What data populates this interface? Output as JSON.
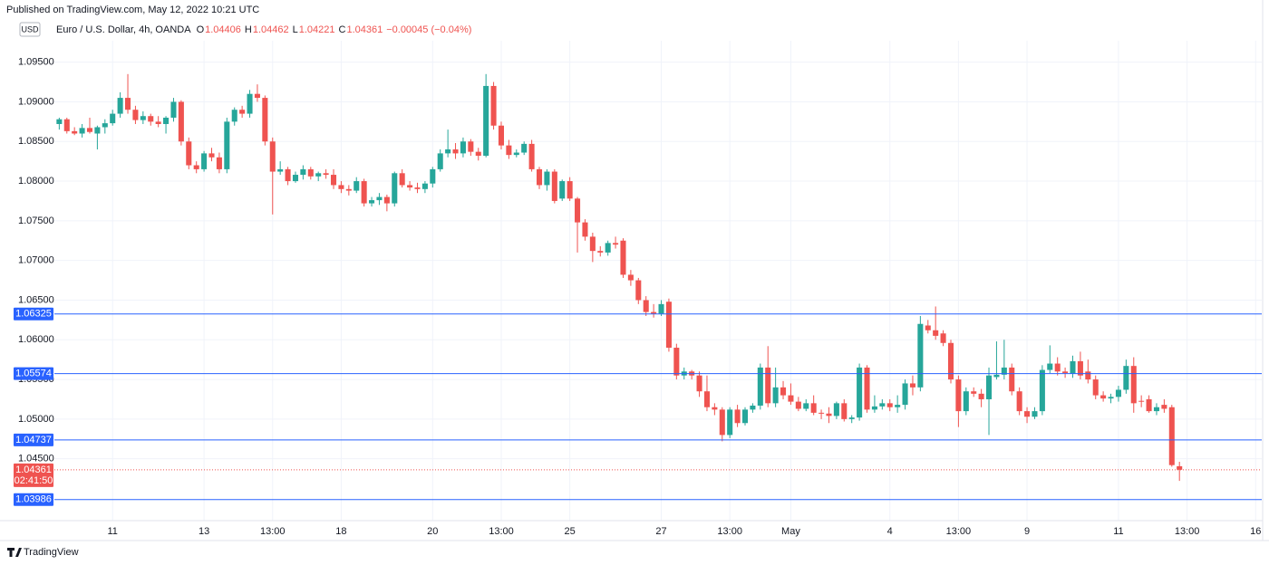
{
  "header": {
    "published": "Published on TradingView.com, May 12, 2022 10:21 UTC",
    "currency": "USD",
    "symbol": "Euro / U.S. Dollar, 4h, OANDA",
    "open_label": "O",
    "open": 1.04406,
    "high_label": "H",
    "high": 1.04462,
    "low_label": "L",
    "low": 1.04221,
    "close_label": "C",
    "close": 1.04361,
    "change": "−0.00045 (−0.04%)"
  },
  "footer": {
    "brand": "TradingView"
  },
  "chart_data": {
    "type": "candlestick",
    "up_color": "#26a69a",
    "down_color": "#ef5350",
    "level_color": "#2962ff",
    "grid": true,
    "ylim": [
      1.0372,
      1.0977
    ],
    "xlim": [
      -0.4,
      157.8
    ],
    "yticks": [
      {
        "value": 1.045,
        "label": "1.04500"
      },
      {
        "value": 1.05,
        "label": "1.05000"
      },
      {
        "value": 1.055,
        "label": "1.05500"
      },
      {
        "value": 1.06,
        "label": "1.06000"
      },
      {
        "value": 1.065,
        "label": "1.06500"
      },
      {
        "value": 1.07,
        "label": "1.07000"
      },
      {
        "value": 1.075,
        "label": "1.07500"
      },
      {
        "value": 1.08,
        "label": "1.08000"
      },
      {
        "value": 1.085,
        "label": "1.08500"
      },
      {
        "value": 1.09,
        "label": "1.09000"
      },
      {
        "value": 1.095,
        "label": "1.09500"
      }
    ],
    "xticks": [
      {
        "value": 7,
        "label": "11"
      },
      {
        "value": 19,
        "label": "13"
      },
      {
        "value": 28,
        "label": "13:00"
      },
      {
        "value": 37,
        "label": "18"
      },
      {
        "value": 49,
        "label": "20"
      },
      {
        "value": 58,
        "label": "13:00"
      },
      {
        "value": 67,
        "label": "25"
      },
      {
        "value": 79,
        "label": "27"
      },
      {
        "value": 88,
        "label": "13:00"
      },
      {
        "value": 96,
        "label": "May"
      },
      {
        "value": 109,
        "label": "4"
      },
      {
        "value": 118,
        "label": "13:00"
      },
      {
        "value": 127,
        "label": "9"
      },
      {
        "value": 139,
        "label": "11"
      },
      {
        "value": 148,
        "label": "13:00"
      },
      {
        "value": 157,
        "label": "16"
      }
    ],
    "levels": [
      1.06325,
      1.05574,
      1.04737,
      1.03986
    ],
    "countdown": "02:41:50",
    "ohlc": [
      [
        1.0872,
        1.088,
        1.0865,
        1.0878
      ],
      [
        1.0878,
        1.088,
        1.086,
        1.0863
      ],
      [
        1.0863,
        1.0868,
        1.0858,
        1.086
      ],
      [
        1.086,
        1.0872,
        1.0855,
        1.0867
      ],
      [
        1.0867,
        1.088,
        1.086,
        1.0862
      ],
      [
        1.086,
        1.087,
        1.084,
        1.0868
      ],
      [
        1.0868,
        1.0878,
        1.086,
        1.0873
      ],
      [
        1.0873,
        1.089,
        1.087,
        1.0885
      ],
      [
        1.0885,
        1.0912,
        1.088,
        1.0905
      ],
      [
        1.0905,
        1.0935,
        1.0885,
        1.089
      ],
      [
        1.089,
        1.0895,
        1.0872,
        1.0877
      ],
      [
        1.0877,
        1.0888,
        1.0872,
        1.0882
      ],
      [
        1.0882,
        1.0885,
        1.087,
        1.0875
      ],
      [
        1.0875,
        1.0882,
        1.0868,
        1.0872
      ],
      [
        1.0872,
        1.0882,
        1.086,
        1.088
      ],
      [
        1.088,
        1.0905,
        1.0875,
        1.09
      ],
      [
        1.09,
        1.0902,
        1.0845,
        1.085
      ],
      [
        1.085,
        1.0855,
        1.0815,
        1.082
      ],
      [
        1.082,
        1.0825,
        1.081,
        1.0815
      ],
      [
        1.0815,
        1.0838,
        1.0812,
        1.0835
      ],
      [
        1.0835,
        1.0842,
        1.0825,
        1.083
      ],
      [
        1.083,
        1.0836,
        1.081,
        1.0815
      ],
      [
        1.0815,
        1.088,
        1.081,
        1.0875
      ],
      [
        1.0875,
        1.0893,
        1.087,
        1.089
      ],
      [
        1.089,
        1.0895,
        1.088,
        1.0885
      ],
      [
        1.0885,
        1.0915,
        1.088,
        1.091
      ],
      [
        1.091,
        1.0922,
        1.09,
        1.0905
      ],
      [
        1.0905,
        1.0908,
        1.0845,
        1.085
      ],
      [
        1.085,
        1.0855,
        1.0758,
        1.0812
      ],
      [
        1.0812,
        1.0825,
        1.0808,
        1.0815
      ],
      [
        1.0815,
        1.0818,
        1.0795,
        1.08
      ],
      [
        1.08,
        1.0812,
        1.0798,
        1.0808
      ],
      [
        1.0808,
        1.082,
        1.0802,
        1.0815
      ],
      [
        1.0815,
        1.0818,
        1.0802,
        1.0806
      ],
      [
        1.0806,
        1.0812,
        1.08,
        1.081
      ],
      [
        1.081,
        1.0815,
        1.0803,
        1.0808
      ],
      [
        1.0808,
        1.0815,
        1.079,
        1.0795
      ],
      [
        1.0795,
        1.08,
        1.0785,
        1.079
      ],
      [
        1.079,
        1.0795,
        1.0782,
        1.0788
      ],
      [
        1.0788,
        1.0805,
        1.0785,
        1.08
      ],
      [
        1.08,
        1.0803,
        1.0768,
        1.0772
      ],
      [
        1.0772,
        1.078,
        1.0768,
        1.0776
      ],
      [
        1.0776,
        1.0785,
        1.077,
        1.078
      ],
      [
        1.078,
        1.0783,
        1.0762,
        1.0772
      ],
      [
        1.0772,
        1.0812,
        1.0768,
        1.081
      ],
      [
        1.081,
        1.0815,
        1.0792,
        1.0795
      ],
      [
        1.0795,
        1.08,
        1.0788,
        1.0792
      ],
      [
        1.0792,
        1.0798,
        1.0785,
        1.079
      ],
      [
        1.079,
        1.08,
        1.0785,
        1.0797
      ],
      [
        1.0797,
        1.0818,
        1.0792,
        1.0815
      ],
      [
        1.0815,
        1.084,
        1.0812,
        1.0835
      ],
      [
        1.0835,
        1.0865,
        1.083,
        1.084
      ],
      [
        1.084,
        1.0848,
        1.0828,
        1.0835
      ],
      [
        1.0835,
        1.0855,
        1.083,
        1.085
      ],
      [
        1.085,
        1.0853,
        1.0832,
        1.0837
      ],
      [
        1.0837,
        1.0842,
        1.0826,
        1.0832
      ],
      [
        1.0832,
        1.0935,
        1.083,
        1.092
      ],
      [
        1.092,
        1.0925,
        1.0865,
        1.087
      ],
      [
        1.087,
        1.0875,
        1.084,
        1.0845
      ],
      [
        1.0845,
        1.0852,
        1.0828,
        1.0833
      ],
      [
        1.0833,
        1.084,
        1.083,
        1.0836
      ],
      [
        1.0836,
        1.085,
        1.0833,
        1.0847
      ],
      [
        1.0847,
        1.0852,
        1.0812,
        1.0815
      ],
      [
        1.0815,
        1.0818,
        1.079,
        1.0795
      ],
      [
        1.0795,
        1.0815,
        1.0788,
        1.0812
      ],
      [
        1.0812,
        1.0815,
        1.0772,
        1.0775
      ],
      [
        1.0778,
        1.0802,
        1.0775,
        1.08
      ],
      [
        1.08,
        1.0805,
        1.0775,
        1.0778
      ],
      [
        1.0778,
        1.078,
        1.071,
        1.0748
      ],
      [
        1.0748,
        1.0752,
        1.0725,
        1.073
      ],
      [
        1.073,
        1.0735,
        1.0698,
        1.0712
      ],
      [
        1.0712,
        1.0718,
        1.0705,
        1.071
      ],
      [
        1.071,
        1.0725,
        1.0706,
        1.0722
      ],
      [
        1.0722,
        1.073,
        1.0715,
        1.072
      ],
      [
        1.0725,
        1.0728,
        1.0678,
        1.0682
      ],
      [
        1.0682,
        1.0688,
        1.0668,
        1.0675
      ],
      [
        1.0675,
        1.0678,
        1.0645,
        1.065
      ],
      [
        1.065,
        1.0655,
        1.063,
        1.0635
      ],
      [
        1.0635,
        1.0645,
        1.0628,
        1.0633
      ],
      [
        1.0633,
        1.065,
        1.063,
        1.0645
      ],
      [
        1.0648,
        1.0652,
        1.0585,
        1.059
      ],
      [
        1.059,
        1.0595,
        1.055,
        1.0555
      ],
      [
        1.0555,
        1.0565,
        1.055,
        1.056
      ],
      [
        1.056,
        1.0562,
        1.055,
        1.0555
      ],
      [
        1.0555,
        1.056,
        1.0528,
        1.0535
      ],
      [
        1.0535,
        1.0555,
        1.051,
        1.0515
      ],
      [
        1.0515,
        1.052,
        1.0505,
        1.0512
      ],
      [
        1.0512,
        1.0515,
        1.0472,
        1.048
      ],
      [
        1.048,
        1.0515,
        1.0476,
        1.0512
      ],
      [
        1.0512,
        1.0518,
        1.049,
        1.0495
      ],
      [
        1.0495,
        1.0515,
        1.0492,
        1.0512
      ],
      [
        1.0512,
        1.052,
        1.0508,
        1.0517
      ],
      [
        1.0517,
        1.057,
        1.0512,
        1.0565
      ],
      [
        1.0565,
        1.0592,
        1.0515,
        1.052
      ],
      [
        1.052,
        1.0565,
        1.0515,
        1.054
      ],
      [
        1.054,
        1.0548,
        1.0525,
        1.053
      ],
      [
        1.053,
        1.0545,
        1.0518,
        1.0522
      ],
      [
        1.0522,
        1.0528,
        1.051,
        1.0513
      ],
      [
        1.0513,
        1.0525,
        1.051,
        1.052
      ],
      [
        1.052,
        1.053,
        1.0505,
        1.0508
      ],
      [
        1.0508,
        1.0512,
        1.05,
        1.0507
      ],
      [
        1.0507,
        1.0515,
        1.0495,
        1.0504
      ],
      [
        1.0504,
        1.0522,
        1.05,
        1.052
      ],
      [
        1.052,
        1.0525,
        1.0497,
        1.05
      ],
      [
        1.05,
        1.0505,
        1.0495,
        1.0502
      ],
      [
        1.0502,
        1.057,
        1.0498,
        1.0565
      ],
      [
        1.0565,
        1.0568,
        1.0508,
        1.0512
      ],
      [
        1.0512,
        1.053,
        1.0508,
        1.0516
      ],
      [
        1.0516,
        1.0525,
        1.0512,
        1.052
      ],
      [
        1.052,
        1.0525,
        1.051,
        1.0515
      ],
      [
        1.0515,
        1.053,
        1.0508,
        1.0518
      ],
      [
        1.0518,
        1.055,
        1.0512,
        1.0545
      ],
      [
        1.0545,
        1.0555,
        1.053,
        1.054
      ],
      [
        1.054,
        1.063,
        1.0535,
        1.062
      ],
      [
        1.0618,
        1.0625,
        1.0608,
        1.0612
      ],
      [
        1.0612,
        1.0642,
        1.06,
        1.0605
      ],
      [
        1.0608,
        1.0612,
        1.0592,
        1.0596
      ],
      [
        1.0596,
        1.06,
        1.0545,
        1.055
      ],
      [
        1.055,
        1.0555,
        1.049,
        1.051
      ],
      [
        1.051,
        1.054,
        1.0505,
        1.0535
      ],
      [
        1.0535,
        1.054,
        1.0528,
        1.0532
      ],
      [
        1.0532,
        1.0538,
        1.0515,
        1.0525
      ],
      [
        1.0525,
        1.0565,
        1.048,
        1.0555
      ],
      [
        1.0553,
        1.0598,
        1.055,
        1.0556
      ],
      [
        1.0556,
        1.06,
        1.055,
        1.0565
      ],
      [
        1.0565,
        1.057,
        1.053,
        1.0535
      ],
      [
        1.0535,
        1.054,
        1.0505,
        1.051
      ],
      [
        1.051,
        1.0515,
        1.0495,
        1.0503
      ],
      [
        1.0503,
        1.0515,
        1.05,
        1.051
      ],
      [
        1.051,
        1.0568,
        1.0505,
        1.0562
      ],
      [
        1.0562,
        1.0593,
        1.0558,
        1.057
      ],
      [
        1.057,
        1.0578,
        1.0555,
        1.056
      ],
      [
        1.056,
        1.0565,
        1.0552,
        1.0558
      ],
      [
        1.0557,
        1.058,
        1.0552,
        1.0573
      ],
      [
        1.0573,
        1.0585,
        1.055,
        1.0555
      ],
      [
        1.056,
        1.0575,
        1.0545,
        1.055
      ],
      [
        1.055,
        1.0555,
        1.0525,
        1.053
      ],
      [
        1.053,
        1.0535,
        1.0522,
        1.0526
      ],
      [
        1.0526,
        1.0532,
        1.052,
        1.0528
      ],
      [
        1.0528,
        1.0542,
        1.0522,
        1.0537
      ],
      [
        1.0537,
        1.0575,
        1.0532,
        1.0567
      ],
      [
        1.0567,
        1.0578,
        1.0508,
        1.052
      ],
      [
        1.0523,
        1.053,
        1.0515,
        1.0522
      ],
      [
        1.0525,
        1.053,
        1.0508,
        1.051
      ],
      [
        1.051,
        1.052,
        1.0505,
        1.0515
      ],
      [
        1.0518,
        1.0525,
        1.0508,
        1.0513
      ],
      [
        1.0515,
        1.0518,
        1.044,
        1.0442
      ],
      [
        1.04406,
        1.04462,
        1.04221,
        1.04361
      ]
    ]
  }
}
